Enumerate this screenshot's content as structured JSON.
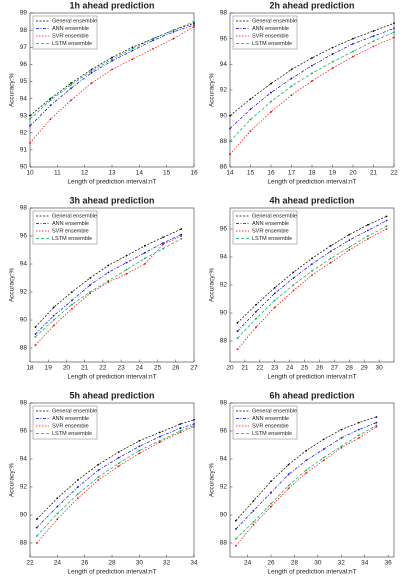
{
  "chart_data": [
    {
      "type": "line",
      "title": "1h ahead prediction",
      "xlabel": "Length of prediction interval:nT",
      "ylabel": "Accuracy:%",
      "x": [
        10,
        10.75,
        11.5,
        12.25,
        13,
        13.75,
        14.5,
        15.25,
        16
      ],
      "xlim": [
        10,
        16
      ],
      "xticks": [
        10,
        11,
        12,
        13,
        14,
        15,
        16
      ],
      "ylim": [
        90,
        99
      ],
      "yticks": [
        90,
        91,
        92,
        93,
        94,
        95,
        96,
        97,
        98,
        99
      ],
      "legend": "upper left",
      "series": [
        {
          "name": "General ensemble",
          "color": "#000000",
          "values": [
            93,
            94,
            94.9,
            95.7,
            96.4,
            97,
            97.5,
            98,
            98.4
          ]
        },
        {
          "name": "ANN ensemble",
          "color": "#0000ff",
          "values": [
            92.4,
            93.6,
            94.6,
            95.5,
            96.2,
            96.8,
            97.4,
            97.9,
            98.3
          ]
        },
        {
          "name": "SVR ensemble",
          "color": "#ff0000",
          "values": [
            91.4,
            92.8,
            93.9,
            94.9,
            95.7,
            96.3,
            96.9,
            97.5,
            98.2
          ]
        },
        {
          "name": "LSTM ensemble",
          "color": "#00b050",
          "values": [
            92.8,
            93.9,
            94.8,
            95.6,
            96.3,
            96.9,
            97.5,
            98,
            98.5
          ]
        }
      ]
    },
    {
      "type": "line",
      "title": "2h ahead prediction",
      "xlabel": "Length of prediction interval:nT",
      "ylabel": "Accuracy:%",
      "x": [
        14,
        15,
        16,
        17,
        18,
        19,
        20,
        21,
        22
      ],
      "xlim": [
        14,
        22
      ],
      "xticks": [
        14,
        15,
        16,
        17,
        18,
        19,
        20,
        21,
        22
      ],
      "ylim": [
        86,
        98
      ],
      "yticks": [
        86,
        88,
        90,
        92,
        94,
        96,
        98
      ],
      "legend": "upper left",
      "series": [
        {
          "name": "General ensemble",
          "color": "#000000",
          "values": [
            90,
            91.3,
            92.5,
            93.6,
            94.5,
            95.3,
            96,
            96.6,
            97.2
          ]
        },
        {
          "name": "ANN ensemble",
          "color": "#0000ff",
          "values": [
            89,
            90.5,
            91.8,
            92.9,
            93.9,
            94.8,
            95.6,
            96.2,
            96.8
          ]
        },
        {
          "name": "SVR ensemble",
          "color": "#ff0000",
          "values": [
            87,
            88.8,
            90.3,
            91.6,
            92.7,
            93.7,
            94.6,
            95.4,
            96.1
          ]
        },
        {
          "name": "LSTM ensemble",
          "color": "#00b050",
          "values": [
            88,
            89.7,
            91.1,
            92.3,
            93.3,
            94.2,
            95,
            95.8,
            96.5
          ]
        }
      ]
    },
    {
      "type": "line",
      "title": "3h ahead prediction",
      "xlabel": "Length of prediction interval:nT",
      "ylabel": "Accuracy:%",
      "x": [
        18.3,
        19.3,
        20.3,
        21.3,
        22.3,
        23.3,
        24.3,
        25.3,
        26.3
      ],
      "xlim": [
        18,
        27
      ],
      "xticks": [
        18,
        19,
        20,
        21,
        22,
        23,
        24,
        25,
        26,
        27
      ],
      "ylim": [
        87,
        98
      ],
      "yticks": [
        88,
        90,
        92,
        94,
        96,
        98
      ],
      "legend": "upper left",
      "series": [
        {
          "name": "General ensemble",
          "color": "#000000",
          "values": [
            89.5,
            90.9,
            92,
            93,
            93.9,
            94.6,
            95.3,
            95.9,
            96.5
          ]
        },
        {
          "name": "ANN ensemble",
          "color": "#0000ff",
          "values": [
            89,
            90.3,
            91.4,
            92.5,
            93.4,
            94.1,
            94.8,
            95.5,
            96.1
          ]
        },
        {
          "name": "SVR ensemble",
          "color": "#ff0000",
          "values": [
            88.2,
            89.6,
            90.8,
            91.9,
            92.7,
            93.3,
            94,
            95.4,
            96
          ]
        },
        {
          "name": "LSTM ensemble",
          "color": "#00b050",
          "values": [
            88.8,
            90,
            91.1,
            92,
            92.8,
            93.6,
            94.4,
            95.1,
            95.8
          ]
        }
      ]
    },
    {
      "type": "line",
      "title": "4h ahead prediction",
      "xlabel": "Length of prediction interval:nT",
      "ylabel": "Accuracy:%",
      "x": [
        20.5,
        21.75,
        23,
        24.25,
        25.5,
        26.75,
        28,
        29.25,
        30.5
      ],
      "xlim": [
        20,
        31
      ],
      "xticks": [
        20,
        21,
        22,
        23,
        24,
        25,
        26,
        27,
        28,
        29,
        30
      ],
      "ylim": [
        86.5,
        97.5
      ],
      "yticks": [
        88,
        90,
        92,
        94,
        96
      ],
      "legend": "upper left",
      "series": [
        {
          "name": "General ensemble",
          "color": "#000000",
          "values": [
            89.3,
            90.6,
            91.8,
            92.9,
            93.9,
            94.8,
            95.6,
            96.3,
            96.9
          ]
        },
        {
          "name": "ANN ensemble",
          "color": "#0000ff",
          "values": [
            88.7,
            90.1,
            91.4,
            92.5,
            93.5,
            94.4,
            95.2,
            95.9,
            96.6
          ]
        },
        {
          "name": "SVR ensemble",
          "color": "#ff0000",
          "values": [
            87.4,
            89,
            90.4,
            91.6,
            92.7,
            93.6,
            94.5,
            95.3,
            96
          ]
        },
        {
          "name": "LSTM ensemble",
          "color": "#00b050",
          "values": [
            88.2,
            89.6,
            90.9,
            92,
            93,
            93.9,
            94.7,
            95.5,
            96.2
          ]
        }
      ]
    },
    {
      "type": "line",
      "title": "5h ahead prediction",
      "xlabel": "Length of prediction interval:nT",
      "ylabel": "Accuracy:%",
      "x": [
        22.5,
        24,
        25.5,
        27,
        28.5,
        30,
        31.5,
        33,
        34
      ],
      "xlim": [
        22,
        34
      ],
      "xticks": [
        22,
        24,
        26,
        28,
        30,
        32,
        34
      ],
      "ylim": [
        87,
        98
      ],
      "yticks": [
        88,
        90,
        92,
        94,
        96,
        98
      ],
      "legend": "upper left",
      "series": [
        {
          "name": "General ensemble",
          "color": "#000000",
          "values": [
            89.7,
            91.2,
            92.5,
            93.6,
            94.5,
            95.3,
            95.9,
            96.5,
            96.8
          ]
        },
        {
          "name": "ANN ensemble",
          "color": "#0000ff",
          "values": [
            89.1,
            90.6,
            92,
            93.2,
            94.1,
            94.9,
            95.6,
            96.2,
            96.5
          ]
        },
        {
          "name": "SVR ensemble",
          "color": "#ff0000",
          "values": [
            88,
            89.7,
            91.2,
            92.5,
            93.5,
            94.4,
            95.2,
            95.9,
            96.3
          ]
        },
        {
          "name": "LSTM ensemble",
          "color": "#00b050",
          "values": [
            88.5,
            90.1,
            91.5,
            92.7,
            93.7,
            94.6,
            95.3,
            96,
            96.4
          ]
        }
      ]
    },
    {
      "type": "line",
      "title": "6h ahead prediction",
      "xlabel": "Length of prediction interval:nT",
      "ylabel": "Accuracy:%",
      "x": [
        23,
        24.5,
        26,
        27.5,
        29,
        30.5,
        32,
        33.5,
        35
      ],
      "xlim": [
        22.5,
        36.5
      ],
      "xticks": [
        24,
        26,
        28,
        30,
        32,
        34,
        36
      ],
      "ylim": [
        87,
        98
      ],
      "yticks": [
        88,
        90,
        92,
        94,
        96,
        98
      ],
      "legend": "upper left",
      "series": [
        {
          "name": "General ensemble",
          "color": "#000000",
          "values": [
            89.6,
            91,
            92.4,
            93.6,
            94.6,
            95.4,
            96.1,
            96.6,
            97
          ]
        },
        {
          "name": "ANN ensemble",
          "color": "#0000ff",
          "values": [
            89,
            90.3,
            91.6,
            92.9,
            93.9,
            94.7,
            95.5,
            96.1,
            96.6
          ]
        },
        {
          "name": "SVR ensemble",
          "color": "#ff0000",
          "values": [
            87.8,
            89.3,
            90.6,
            91.9,
            93,
            93.9,
            94.8,
            95.5,
            96.3
          ]
        },
        {
          "name": "LSTM ensemble",
          "color": "#00b050",
          "values": [
            88.3,
            89.5,
            90.8,
            92.1,
            93.2,
            94.1,
            94.9,
            95.7,
            96.4
          ]
        }
      ]
    }
  ]
}
